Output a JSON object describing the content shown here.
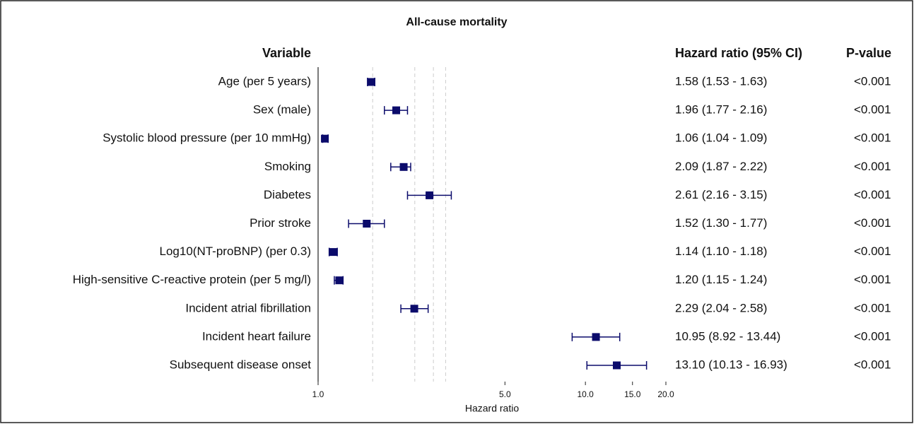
{
  "chart_data": {
    "type": "forest",
    "title": "All-cause mortality",
    "variable_header": "Variable",
    "ci_header": "Hazard ratio (95% CI)",
    "p_header": "P-value",
    "x_label": "Hazard ratio",
    "log_x": true,
    "xlim": [
      1.0,
      20.0
    ],
    "xticks": [
      {
        "value": 1,
        "label": "1.0"
      },
      {
        "value": 5,
        "label": "5.0"
      },
      {
        "value": 10,
        "label": "10.0"
      },
      {
        "value": 15,
        "label": "15.0"
      },
      {
        "value": 20,
        "label": "20.0"
      }
    ],
    "reference_lines": [
      1.6,
      2.3,
      2.7,
      3.0
    ],
    "color": "#0b0b6b",
    "categories": [
      "Age (per 5 years)",
      "Sex (male)",
      "Systolic blood pressure (per 10 mmHg)",
      "Smoking",
      "Diabetes",
      "Prior stroke",
      "Log10(NT-proBNP) (per 0.3)",
      "High-sensitive C-reactive protein (per 5 mg/l)",
      "Incident atrial fibrillation",
      "Incident heart failure",
      "Subsequent disease onset"
    ],
    "values": [
      1.58,
      1.96,
      1.06,
      2.09,
      2.61,
      1.52,
      1.14,
      1.2,
      2.29,
      10.95,
      13.1
    ],
    "lower": [
      1.53,
      1.77,
      1.04,
      1.87,
      2.16,
      1.3,
      1.1,
      1.15,
      2.04,
      8.92,
      10.13
    ],
    "upper": [
      1.63,
      2.16,
      1.09,
      2.22,
      3.15,
      1.77,
      1.18,
      1.24,
      2.58,
      13.44,
      16.93
    ],
    "value_labels": [
      "1.58 (1.53 - 1.63)",
      "1.96 (1.77 - 2.16)",
      "1.06 (1.04 - 1.09)",
      "2.09 (1.87 - 2.22)",
      "2.61 (2.16 - 3.15)",
      "1.52 (1.30 - 1.77)",
      "1.14 (1.10 - 1.18)",
      "1.20 (1.15 - 1.24)",
      "2.29 (2.04 - 2.58)",
      "10.95 (8.92 - 13.44)",
      "13.10 (10.13 - 16.93)"
    ],
    "p_values": [
      "<0.001",
      "<0.001",
      "<0.001",
      "<0.001",
      "<0.001",
      "<0.001",
      "<0.001",
      "<0.001",
      "<0.001",
      "<0.001",
      "<0.001"
    ]
  }
}
